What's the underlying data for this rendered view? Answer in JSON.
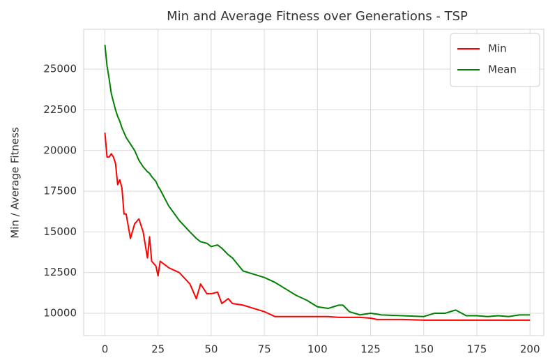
{
  "chart_data": {
    "type": "line",
    "title": "Min and Average Fitness over Generations - TSP",
    "ylabel": "Min / Average Fitness",
    "x": [
      0,
      1,
      2,
      3,
      4,
      5,
      6,
      7,
      8,
      9,
      10,
      12,
      14,
      16,
      18,
      20,
      21,
      22,
      24,
      25,
      26,
      28,
      30,
      35,
      40,
      43,
      45,
      48,
      50,
      53,
      55,
      58,
      60,
      65,
      70,
      75,
      80,
      85,
      90,
      95,
      100,
      105,
      110,
      112,
      115,
      120,
      125,
      128,
      130,
      140,
      150,
      155,
      160,
      165,
      170,
      175,
      180,
      185,
      190,
      195,
      200
    ],
    "series": [
      {
        "name": "Min",
        "color": "#ff0000",
        "values": [
          21100,
          19600,
          19600,
          19800,
          19600,
          19200,
          17900,
          18200,
          17700,
          16100,
          16100,
          14600,
          15500,
          15800,
          15000,
          13400,
          14700,
          13200,
          12900,
          12300,
          13200,
          13000,
          12800,
          12500,
          11800,
          10900,
          11800,
          11200,
          11200,
          11300,
          10600,
          10900,
          10600,
          10500,
          10300,
          10100,
          9800,
          9800,
          9800,
          9800,
          9800,
          9800,
          9750,
          9750,
          9750,
          9750,
          9700,
          9620,
          9620,
          9620,
          9580,
          9580,
          9580,
          9580,
          9580,
          9580,
          9580,
          9580,
          9580,
          9580,
          9580
        ]
      },
      {
        "name": "Mean",
        "color": "#008000",
        "values": [
          26500,
          25200,
          24400,
          23500,
          23000,
          22500,
          22100,
          21800,
          21400,
          21100,
          20800,
          20400,
          20000,
          19400,
          19000,
          18700,
          18600,
          18400,
          18100,
          17800,
          17600,
          17100,
          16600,
          15700,
          15000,
          14600,
          14400,
          14300,
          14100,
          14200,
          14000,
          13600,
          13400,
          12600,
          12400,
          12200,
          11900,
          11500,
          11100,
          10800,
          10400,
          10300,
          10500,
          10500,
          10100,
          9900,
          10000,
          9950,
          9900,
          9850,
          9800,
          10000,
          10000,
          10200,
          9850,
          9850,
          9800,
          9850,
          9800,
          9900,
          9900
        ]
      }
    ],
    "xlim": [
      -10,
      206.5
    ],
    "ylim": [
      8630,
      27450
    ],
    "xticks": [
      0,
      25,
      50,
      75,
      100,
      125,
      150,
      175,
      200
    ],
    "yticks": [
      10000,
      12500,
      15000,
      17500,
      20000,
      22500,
      25000
    ],
    "grid": true,
    "legend": "upper right"
  }
}
